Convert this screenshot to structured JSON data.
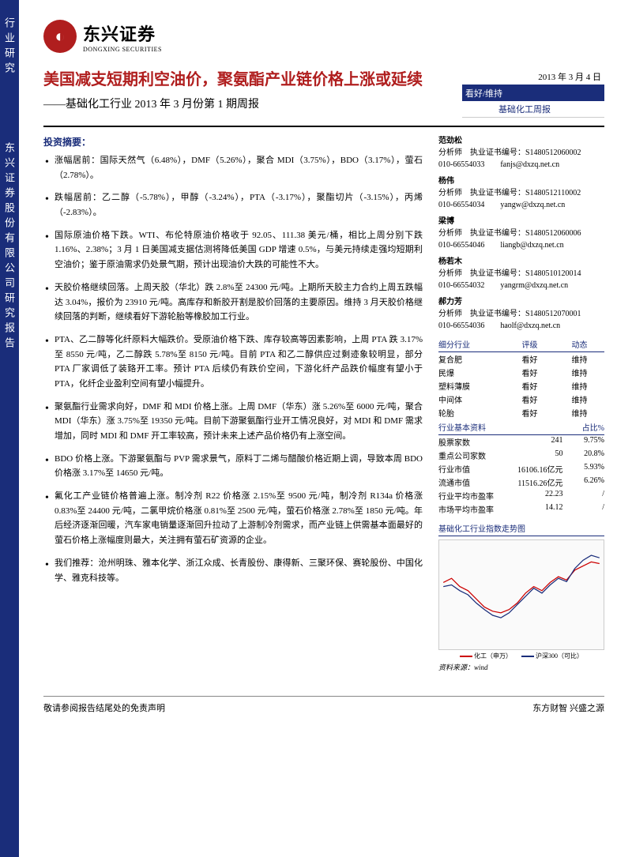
{
  "left_band": {
    "text1": "行业研究",
    "text2": "东兴证券股份有限公司研究报告"
  },
  "header": {
    "company_cn": "东兴证券",
    "company_en": "DONGXING SECURITIES"
  },
  "title": {
    "main": "美国减支短期利空油价，聚氨酯产业链价格上涨或延续",
    "sub": "——基础化工行业 2013 年 3 月份第 1 期周报"
  },
  "date_block": {
    "date": "2013 年 3 月 4 日",
    "rating_label": "看好/维持",
    "industry": "基础化工",
    "type": "周报"
  },
  "summary_title": "投资摘要：",
  "bullets": [
    "涨幅居前：国际天然气（6.48%），DMF（5.26%），聚合 MDI（3.75%），BDO（3.17%），萤石（2.78%）。",
    "跌幅居前：乙二醇（-5.78%），甲醇（-3.24%），PTA（-3.17%），聚酯切片（-3.15%），丙烯（-2.83%）。",
    "国际原油价格下跌。WTI、布伦特原油价格收于 92.05、111.38 美元/桶，相比上周分别下跌 1.16%、2.38%；3 月 1 日美国减支据估测将降低美国 GDP 增速 0.5%，与美元持续走强均短期利空油价；鉴于原油需求仍处景气期，预计出现油价大跌的可能性不大。",
    "天胶价格继续回落。上周天胶（华北）跌 2.8%至 24300 元/吨。上期所天胶主力合约上周五跌幅达 3.04%，报价为 23910 元/吨。高库存和新胶开割是胶价回落的主要原因。维持 3 月天胶价格继续回落的判断，继续看好下游轮胎等橡胶加工行业。",
    "PTA、乙二醇等化纤原料大幅跌价。受原油价格下跌、库存较高等因素影响，上周 PTA 跌 3.17%至 8550 元/吨，乙二醇跌 5.78%至 8150 元/吨。目前 PTA 和乙二醇供应过剩迹象较明显，部分 PTA 厂家调低了装臵开工率。预计 PTA 后续仍有跌价空间，下游化纤产品跌价幅度有望小于 PTA，化纤企业盈利空间有望小幅提升。",
    "聚氨酯行业需求向好，DMF 和 MDI 价格上涨。上周 DMF（华东）涨 5.26%至 6000 元/吨，聚合 MDI（华东）涨 3.75%至 19350 元/吨。目前下游聚氨酯行业开工情况良好，对 MDI 和 DMF 需求增加，同时 MDI 和 DMF 开工率较高，预计未来上述产品价格仍有上涨空间。",
    "BDO 价格上涨。下游聚氨酯与 PVP 需求景气，原料丁二烯与醋酸价格近期上调，导致本周 BDO 价格涨 3.17%至 14650 元/吨。",
    "氟化工产业链价格普遍上涨。制冷剂 R22 价格涨 2.15%至 9500 元/吨，制冷剂 R134a 价格涨 0.83%至 24400 元/吨，二氯甲烷价格涨 0.81%至 2500 元/吨，萤石价格涨 2.78%至 1850 元/吨。年后经济逐渐回暖，汽车家电销量逐渐回升拉动了上游制冷剂需求，而产业链上供需基本面最好的萤石价格上涨幅度则最大，关注拥有萤石矿资源的企业。",
    "我们推荐：沧州明珠、雅本化学、浙江众成、长青股份、康得新、三聚环保、赛轮股份、中国化学、雅克科技等。"
  ],
  "analysts": [
    {
      "name": "范劲松",
      "role": "分析师",
      "cert": "执业证书编号：S1480512060002",
      "phone": "010-66554033",
      "email": "fanjs@dxzq.net.cn"
    },
    {
      "name": "杨伟",
      "role": "分析师",
      "cert": "执业证书编号：S1480512110002",
      "phone": "010-66554034",
      "email": "yangw@dxzq.net.cn"
    },
    {
      "name": "梁博",
      "role": "分析师",
      "cert": "执业证书编号：S1480512060006",
      "phone": "010-66554046",
      "email": "liangb@dxzq.net.cn"
    },
    {
      "name": "杨若木",
      "role": "分析师",
      "cert": "执业证书编号：S1480510120014",
      "phone": "010-66554032",
      "email": "yangrm@dxzq.net.cn"
    },
    {
      "name": "郝力芳",
      "role": "分析师",
      "cert": "执业证书编号：S1480512070001",
      "phone": "010-66554036",
      "email": "haolf@dxzq.net.cn"
    }
  ],
  "ratings_header": {
    "c1": "细分行业",
    "c2": "评级",
    "c3": "动态"
  },
  "ratings": [
    {
      "name": "复合肥",
      "rating": "看好",
      "status": "维持"
    },
    {
      "name": "民爆",
      "rating": "看好",
      "status": "维持"
    },
    {
      "name": "塑料薄膜",
      "rating": "看好",
      "status": "维持"
    },
    {
      "name": "中间体",
      "rating": "看好",
      "status": "维持"
    },
    {
      "name": "轮胎",
      "rating": "看好",
      "status": "维持"
    }
  ],
  "industry_data_header": {
    "label": "行业基本资料",
    "col2": "占比%"
  },
  "industry_data": [
    {
      "label": "股票家数",
      "v1": "241",
      "v2": "9.75%"
    },
    {
      "label": "重点公司家数",
      "v1": "50",
      "v2": "20.8%"
    },
    {
      "label": "行业市值",
      "v1": "16106.16亿元",
      "v2": "5.93%"
    },
    {
      "label": "流通市值",
      "v1": "11516.26亿元",
      "v2": "6.26%"
    },
    {
      "label": "行业平均市盈率",
      "v1": "22.23",
      "v2": "/"
    },
    {
      "label": "市场平均市盈率",
      "v1": "14.12",
      "v2": "/"
    }
  ],
  "chart": {
    "title": "基础化工行业指数走势图",
    "series1": {
      "label": "化工（申万）",
      "color": "#cc0000"
    },
    "series2": {
      "label": "沪深300（可比）",
      "color": "#1a2d7a"
    },
    "source": "资料来源：wind"
  },
  "footer": {
    "left": "敬请参阅报告结尾处的免责声明",
    "right": "东方财智 兴盛之源"
  }
}
